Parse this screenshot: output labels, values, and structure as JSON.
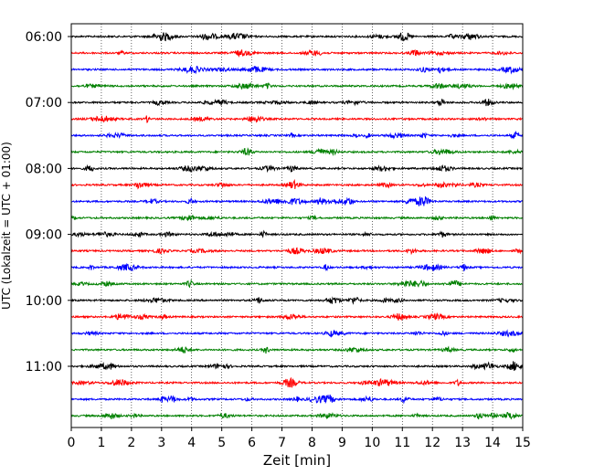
{
  "chart_data": {
    "type": "line",
    "xlabel": "Zeit  [min]",
    "ylabel": "UTC (Lokalzeit = UTC + 01:00)",
    "xlim": [
      0,
      15
    ],
    "x_ticks": [
      "0",
      "1",
      "2",
      "3",
      "4",
      "5",
      "6",
      "7",
      "8",
      "9",
      "10",
      "11",
      "12",
      "13",
      "14",
      "15"
    ],
    "y_tick_labels": [
      "06:00",
      "07:00",
      "08:00",
      "09:00",
      "10:00",
      "11:00"
    ],
    "grid": "vertical dotted",
    "trace_start": "06:00",
    "trace_interval_minutes": 15,
    "trace_count": 24,
    "trace_colors": [
      "#000000",
      "#ff0000",
      "#0000ff",
      "#008000"
    ]
  }
}
